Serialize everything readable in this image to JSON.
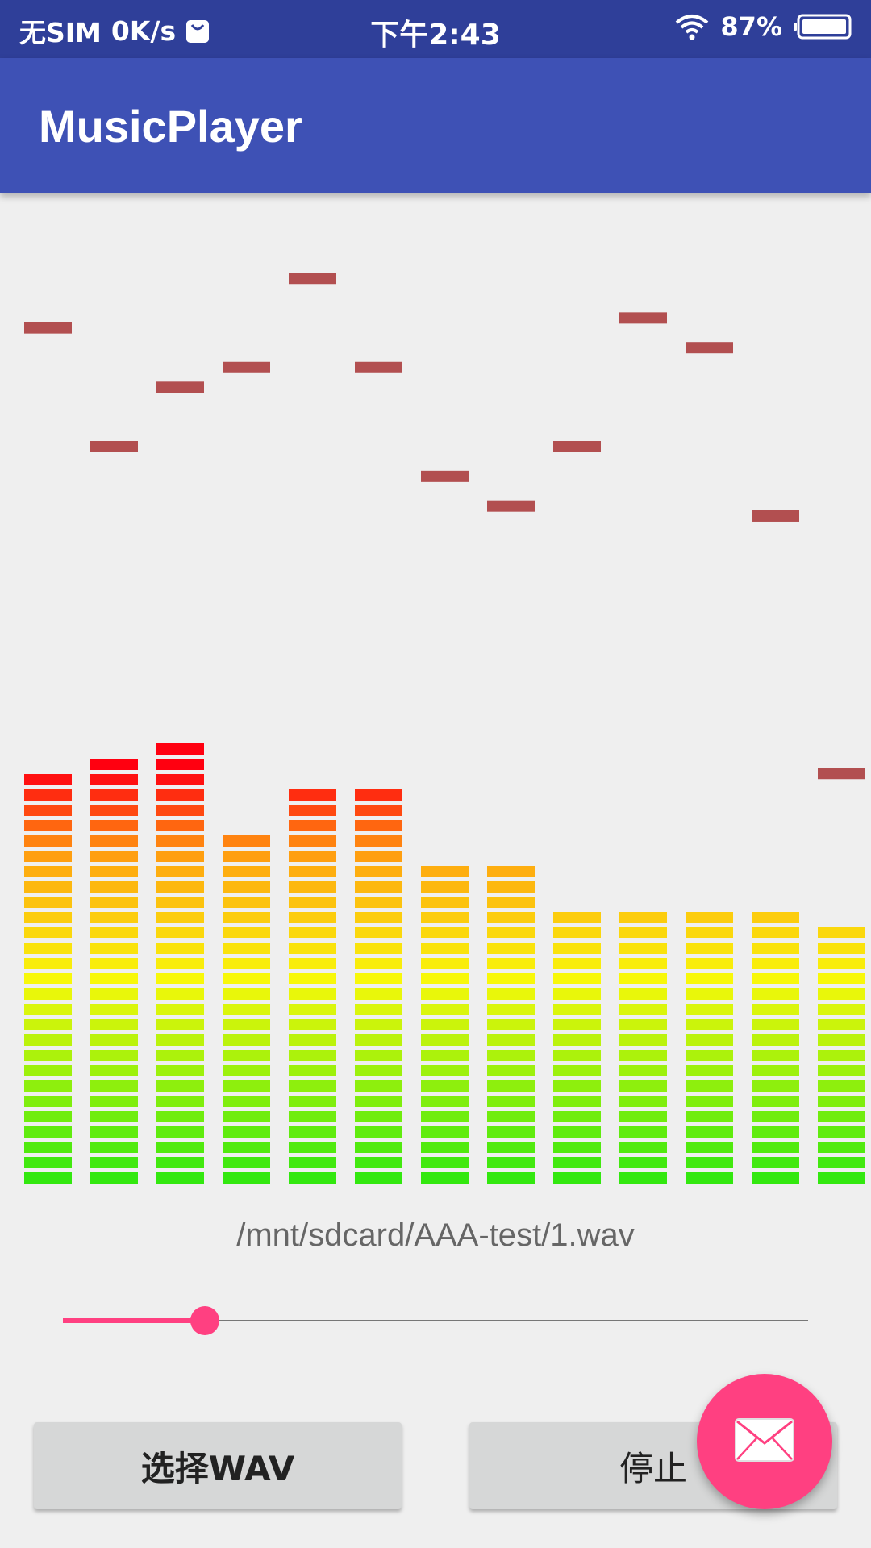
{
  "status_bar": {
    "carrier": "无SIM",
    "speed": "0K/s",
    "time": "下午2:43",
    "battery": "87%",
    "icons": [
      "bag-icon",
      "wifi-icon",
      "battery-icon"
    ]
  },
  "app_bar": {
    "title": "MusicPlayer"
  },
  "visualizer": {
    "segments_total": 27,
    "bands": [
      {
        "level": 27,
        "peak": 0.87
      },
      {
        "level": 28,
        "peak": 0.75
      },
      {
        "level": 29,
        "peak": 0.81
      },
      {
        "level": 23,
        "peak": 0.83
      },
      {
        "level": 26,
        "peak": 0.92
      },
      {
        "level": 26,
        "peak": 0.83
      },
      {
        "level": 21,
        "peak": 0.72
      },
      {
        "level": 21,
        "peak": 0.69
      },
      {
        "level": 18,
        "peak": 0.75
      },
      {
        "level": 18,
        "peak": 0.88
      },
      {
        "level": 18,
        "peak": 0.85
      },
      {
        "level": 18,
        "peak": 0.68
      },
      {
        "level": 17,
        "peak": 0.42
      }
    ],
    "colors": {
      "bottom": "#33e80f",
      "middle": "#f8f80a",
      "upper": "#ffa510",
      "top": "#ff1010",
      "peak": "#b24f50"
    }
  },
  "file": {
    "path": "/mnt/sdcard/AAA-test/1.wav"
  },
  "seekbar": {
    "progress": 0.19,
    "color": "#ff4081"
  },
  "buttons": {
    "select_label": "选择WAV",
    "stop_label": "停止"
  },
  "fab": {
    "icon": "mail-icon",
    "color": "#ff4081"
  }
}
